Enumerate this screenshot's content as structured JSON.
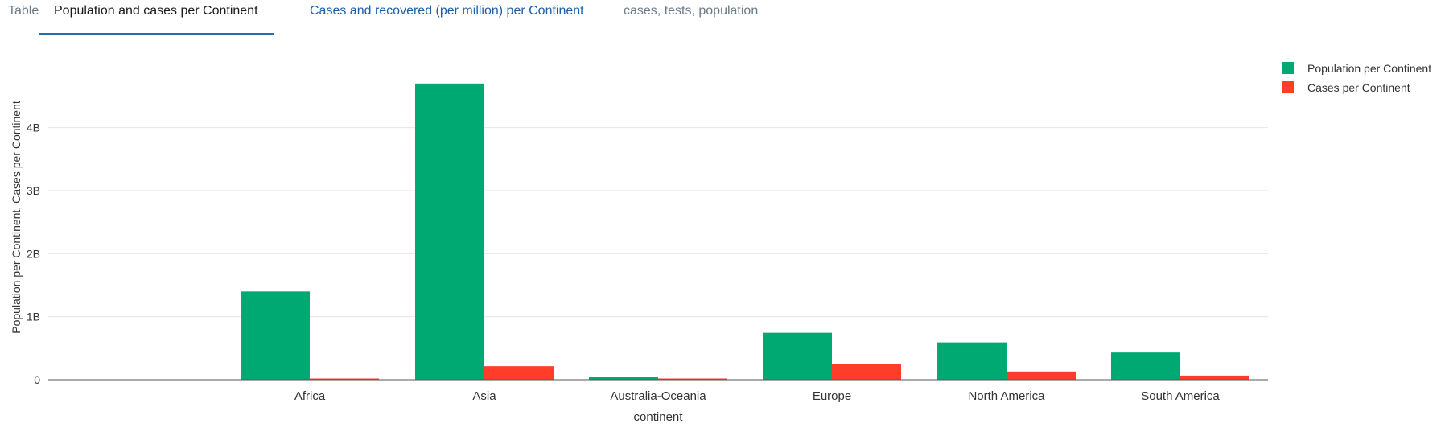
{
  "tabs": [
    {
      "label": "Table",
      "state": "muted"
    },
    {
      "label": "Population and cases per Continent",
      "state": "active"
    },
    {
      "label": "Cases and recovered (per million) per Continent",
      "state": "link"
    },
    {
      "label": "cases, tests, population",
      "state": "muted"
    }
  ],
  "chart_data": {
    "type": "bar",
    "categories": [
      "Africa",
      "Asia",
      "Australia-Oceania",
      "Europe",
      "North America",
      "South America"
    ],
    "series": [
      {
        "name": "Population per Continent",
        "color": "#00a972",
        "values": [
          1400000000,
          4700000000,
          42000000,
          745000000,
          592000000,
          432000000
        ]
      },
      {
        "name": "Cases per Continent",
        "color": "#ff3d28",
        "values": [
          12000000,
          215000000,
          10000000,
          250000000,
          130000000,
          65000000
        ]
      }
    ],
    "xlabel": "continent",
    "ylabel": "Population per Continent, Cases per Continent",
    "ylim": [
      0,
      4800000000
    ],
    "yticks": [
      {
        "value": 0,
        "label": "0"
      },
      {
        "value": 1000000000,
        "label": "1B"
      },
      {
        "value": 2000000000,
        "label": "2B"
      },
      {
        "value": 3000000000,
        "label": "3B"
      },
      {
        "value": 4000000000,
        "label": "4B"
      }
    ],
    "grid": true,
    "legend": "top-right"
  }
}
